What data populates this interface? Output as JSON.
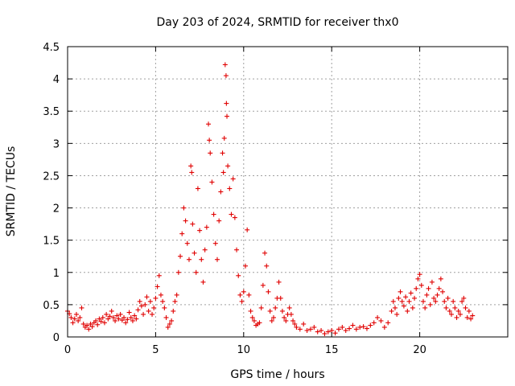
{
  "chart_data": {
    "type": "scatter",
    "title": "Day 203 of 2024, SRMTID for receiver thx0",
    "xlabel": "GPS time / hours",
    "ylabel": "SRMTID / TECUs",
    "xlim": [
      0,
      25
    ],
    "ylim": [
      0,
      4.5
    ],
    "xticks": [
      0,
      5,
      10,
      15,
      20
    ],
    "yticks": [
      0,
      0.5,
      1,
      1.5,
      2,
      2.5,
      3,
      3.5,
      4,
      4.5
    ],
    "x_tick_labels": [
      "0",
      "5",
      "10",
      "15",
      "20"
    ],
    "y_tick_labels": [
      "0",
      "0.5",
      "1",
      "1.5",
      "2",
      "2.5",
      "3",
      "3.5",
      "4",
      "4.5"
    ],
    "grid": true,
    "marker": "+",
    "series": [
      {
        "name": "SRMTID",
        "color": "#e00000",
        "points": [
          [
            0.0,
            0.4
          ],
          [
            0.1,
            0.36
          ],
          [
            0.2,
            0.3
          ],
          [
            0.3,
            0.22
          ],
          [
            0.4,
            0.28
          ],
          [
            0.5,
            0.35
          ],
          [
            0.6,
            0.25
          ],
          [
            0.7,
            0.3
          ],
          [
            0.8,
            0.45
          ],
          [
            0.9,
            0.2
          ],
          [
            1.0,
            0.15
          ],
          [
            1.1,
            0.18
          ],
          [
            1.2,
            0.12
          ],
          [
            1.3,
            0.2
          ],
          [
            1.4,
            0.16
          ],
          [
            1.5,
            0.22
          ],
          [
            1.6,
            0.25
          ],
          [
            1.7,
            0.19
          ],
          [
            1.8,
            0.28
          ],
          [
            1.9,
            0.24
          ],
          [
            2.0,
            0.3
          ],
          [
            2.1,
            0.22
          ],
          [
            2.2,
            0.35
          ],
          [
            2.3,
            0.28
          ],
          [
            2.4,
            0.32
          ],
          [
            2.5,
            0.4
          ],
          [
            2.6,
            0.3
          ],
          [
            2.7,
            0.25
          ],
          [
            2.8,
            0.33
          ],
          [
            2.9,
            0.28
          ],
          [
            3.0,
            0.35
          ],
          [
            3.1,
            0.26
          ],
          [
            3.2,
            0.3
          ],
          [
            3.3,
            0.22
          ],
          [
            3.4,
            0.27
          ],
          [
            3.5,
            0.38
          ],
          [
            3.6,
            0.3
          ],
          [
            3.7,
            0.25
          ],
          [
            3.8,
            0.33
          ],
          [
            3.9,
            0.28
          ],
          [
            4.0,
            0.42
          ],
          [
            4.1,
            0.55
          ],
          [
            4.2,
            0.48
          ],
          [
            4.3,
            0.35
          ],
          [
            4.4,
            0.5
          ],
          [
            4.5,
            0.62
          ],
          [
            4.6,
            0.4
          ],
          [
            4.7,
            0.55
          ],
          [
            4.8,
            0.35
          ],
          [
            4.9,
            0.45
          ],
          [
            5.0,
            0.6
          ],
          [
            5.1,
            0.78
          ],
          [
            5.2,
            0.95
          ],
          [
            5.3,
            0.65
          ],
          [
            5.4,
            0.55
          ],
          [
            5.5,
            0.45
          ],
          [
            5.6,
            0.3
          ],
          [
            5.7,
            0.15
          ],
          [
            5.8,
            0.2
          ],
          [
            5.9,
            0.25
          ],
          [
            6.0,
            0.4
          ],
          [
            6.1,
            0.55
          ],
          [
            6.2,
            0.65
          ],
          [
            6.3,
            1.0
          ],
          [
            6.4,
            1.25
          ],
          [
            6.5,
            1.6
          ],
          [
            6.6,
            2.0
          ],
          [
            6.7,
            1.8
          ],
          [
            6.8,
            1.45
          ],
          [
            6.9,
            1.2
          ],
          [
            7.0,
            2.65
          ],
          [
            7.05,
            2.55
          ],
          [
            7.1,
            1.75
          ],
          [
            7.2,
            1.3
          ],
          [
            7.3,
            1.0
          ],
          [
            7.4,
            2.3
          ],
          [
            7.5,
            1.65
          ],
          [
            7.6,
            1.2
          ],
          [
            7.7,
            0.85
          ],
          [
            7.8,
            1.35
          ],
          [
            7.9,
            1.7
          ],
          [
            8.0,
            3.3
          ],
          [
            8.05,
            3.05
          ],
          [
            8.1,
            2.85
          ],
          [
            8.2,
            2.4
          ],
          [
            8.3,
            1.9
          ],
          [
            8.4,
            1.45
          ],
          [
            8.5,
            1.2
          ],
          [
            8.6,
            1.8
          ],
          [
            8.7,
            2.25
          ],
          [
            8.8,
            2.85
          ],
          [
            8.85,
            2.55
          ],
          [
            8.9,
            3.08
          ],
          [
            8.95,
            4.22
          ],
          [
            9.0,
            4.05
          ],
          [
            9.02,
            3.62
          ],
          [
            9.05,
            3.42
          ],
          [
            9.1,
            2.65
          ],
          [
            9.2,
            2.3
          ],
          [
            9.3,
            1.9
          ],
          [
            9.4,
            2.45
          ],
          [
            9.5,
            1.85
          ],
          [
            9.6,
            1.35
          ],
          [
            9.7,
            0.95
          ],
          [
            9.8,
            0.65
          ],
          [
            9.9,
            0.55
          ],
          [
            10.0,
            0.7
          ],
          [
            10.1,
            1.1
          ],
          [
            10.2,
            1.66
          ],
          [
            10.3,
            0.65
          ],
          [
            10.4,
            0.4
          ],
          [
            10.5,
            0.3
          ],
          [
            10.6,
            0.25
          ],
          [
            10.7,
            0.18
          ],
          [
            10.8,
            0.2
          ],
          [
            10.9,
            0.22
          ],
          [
            11.0,
            0.45
          ],
          [
            11.1,
            0.8
          ],
          [
            11.2,
            1.3
          ],
          [
            11.3,
            1.1
          ],
          [
            11.4,
            0.7
          ],
          [
            11.5,
            0.4
          ],
          [
            11.6,
            0.25
          ],
          [
            11.7,
            0.3
          ],
          [
            11.8,
            0.45
          ],
          [
            11.9,
            0.6
          ],
          [
            12.0,
            0.85
          ],
          [
            12.1,
            0.6
          ],
          [
            12.2,
            0.4
          ],
          [
            12.3,
            0.3
          ],
          [
            12.4,
            0.25
          ],
          [
            12.5,
            0.35
          ],
          [
            12.6,
            0.45
          ],
          [
            12.7,
            0.35
          ],
          [
            12.8,
            0.25
          ],
          [
            12.9,
            0.2
          ],
          [
            13.0,
            0.15
          ],
          [
            13.2,
            0.12
          ],
          [
            13.4,
            0.2
          ],
          [
            13.6,
            0.1
          ],
          [
            13.8,
            0.12
          ],
          [
            14.0,
            0.15
          ],
          [
            14.2,
            0.08
          ],
          [
            14.4,
            0.1
          ],
          [
            14.6,
            0.05
          ],
          [
            14.8,
            0.08
          ],
          [
            15.0,
            0.1
          ],
          [
            15.2,
            0.06
          ],
          [
            15.4,
            0.12
          ],
          [
            15.6,
            0.15
          ],
          [
            15.8,
            0.1
          ],
          [
            16.0,
            0.13
          ],
          [
            16.2,
            0.18
          ],
          [
            16.4,
            0.12
          ],
          [
            16.6,
            0.15
          ],
          [
            16.8,
            0.16
          ],
          [
            17.0,
            0.13
          ],
          [
            17.2,
            0.18
          ],
          [
            17.4,
            0.22
          ],
          [
            17.6,
            0.3
          ],
          [
            17.8,
            0.25
          ],
          [
            18.0,
            0.15
          ],
          [
            18.2,
            0.22
          ],
          [
            18.4,
            0.4
          ],
          [
            18.5,
            0.55
          ],
          [
            18.6,
            0.45
          ],
          [
            18.7,
            0.35
          ],
          [
            18.8,
            0.6
          ],
          [
            18.9,
            0.7
          ],
          [
            19.0,
            0.55
          ],
          [
            19.1,
            0.48
          ],
          [
            19.2,
            0.62
          ],
          [
            19.3,
            0.4
          ],
          [
            19.4,
            0.55
          ],
          [
            19.5,
            0.68
          ],
          [
            19.6,
            0.45
          ],
          [
            19.7,
            0.6
          ],
          [
            19.8,
            0.75
          ],
          [
            19.9,
            0.9
          ],
          [
            20.0,
            0.97
          ],
          [
            20.1,
            0.8
          ],
          [
            20.2,
            0.55
          ],
          [
            20.3,
            0.45
          ],
          [
            20.4,
            0.65
          ],
          [
            20.5,
            0.75
          ],
          [
            20.6,
            0.5
          ],
          [
            20.7,
            0.85
          ],
          [
            20.8,
            0.6
          ],
          [
            20.9,
            0.55
          ],
          [
            21.0,
            0.65
          ],
          [
            21.1,
            0.75
          ],
          [
            21.2,
            0.9
          ],
          [
            21.3,
            0.7
          ],
          [
            21.4,
            0.55
          ],
          [
            21.5,
            0.45
          ],
          [
            21.6,
            0.6
          ],
          [
            21.7,
            0.4
          ],
          [
            21.8,
            0.35
          ],
          [
            21.9,
            0.55
          ],
          [
            22.0,
            0.45
          ],
          [
            22.1,
            0.3
          ],
          [
            22.2,
            0.4
          ],
          [
            22.3,
            0.35
          ],
          [
            22.4,
            0.55
          ],
          [
            22.5,
            0.6
          ],
          [
            22.6,
            0.45
          ],
          [
            22.7,
            0.3
          ],
          [
            22.8,
            0.4
          ],
          [
            22.9,
            0.28
          ],
          [
            23.0,
            0.33
          ]
        ]
      }
    ]
  }
}
